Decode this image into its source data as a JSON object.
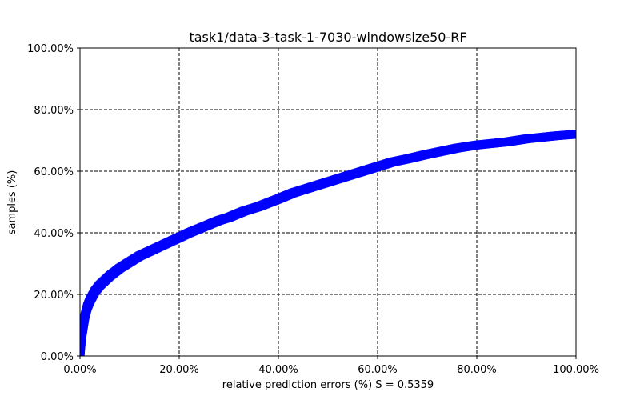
{
  "chart_data": {
    "type": "scatter",
    "title": "task1/data-3-task-1-7030-windowsize50-RF",
    "xlabel": "relative prediction errors (%)     S = 0.5359",
    "ylabel": "samples (%)",
    "xlim": [
      0,
      1
    ],
    "ylim": [
      0,
      1
    ],
    "xticks": [
      0,
      0.2,
      0.4,
      0.6,
      0.8,
      1.0
    ],
    "yticks": [
      0,
      0.2,
      0.4,
      0.6,
      0.8,
      1.0
    ],
    "xtick_labels": [
      "0.00%",
      "20.00%",
      "40.00%",
      "60.00%",
      "80.00%",
      "100.00%"
    ],
    "ytick_labels": [
      "0.00%",
      "20.00%",
      "40.00%",
      "60.00%",
      "80.00%",
      "100.00%"
    ],
    "grid": true,
    "marker_color": "#0000ff",
    "series": [
      {
        "x": [
          0.0,
          0.002,
          0.004,
          0.006,
          0.008,
          0.01,
          0.015,
          0.02,
          0.03,
          0.04,
          0.05,
          0.06,
          0.08,
          0.1,
          0.12,
          0.14,
          0.16,
          0.18,
          0.2,
          0.22,
          0.25,
          0.28,
          0.3,
          0.33,
          0.36,
          0.4,
          0.43,
          0.46,
          0.5,
          0.53,
          0.56,
          0.6,
          0.63,
          0.66,
          0.7,
          0.73,
          0.76,
          0.8,
          0.83,
          0.86,
          0.9,
          0.93,
          0.96,
          1.0
        ],
        "y": [
          0.0,
          0.04,
          0.07,
          0.09,
          0.11,
          0.13,
          0.16,
          0.18,
          0.21,
          0.23,
          0.245,
          0.26,
          0.285,
          0.305,
          0.325,
          0.34,
          0.355,
          0.37,
          0.385,
          0.4,
          0.42,
          0.44,
          0.45,
          0.47,
          0.485,
          0.51,
          0.53,
          0.545,
          0.565,
          0.58,
          0.595,
          0.615,
          0.63,
          0.64,
          0.655,
          0.665,
          0.675,
          0.685,
          0.69,
          0.695,
          0.705,
          0.71,
          0.715,
          0.72
        ]
      }
    ]
  }
}
